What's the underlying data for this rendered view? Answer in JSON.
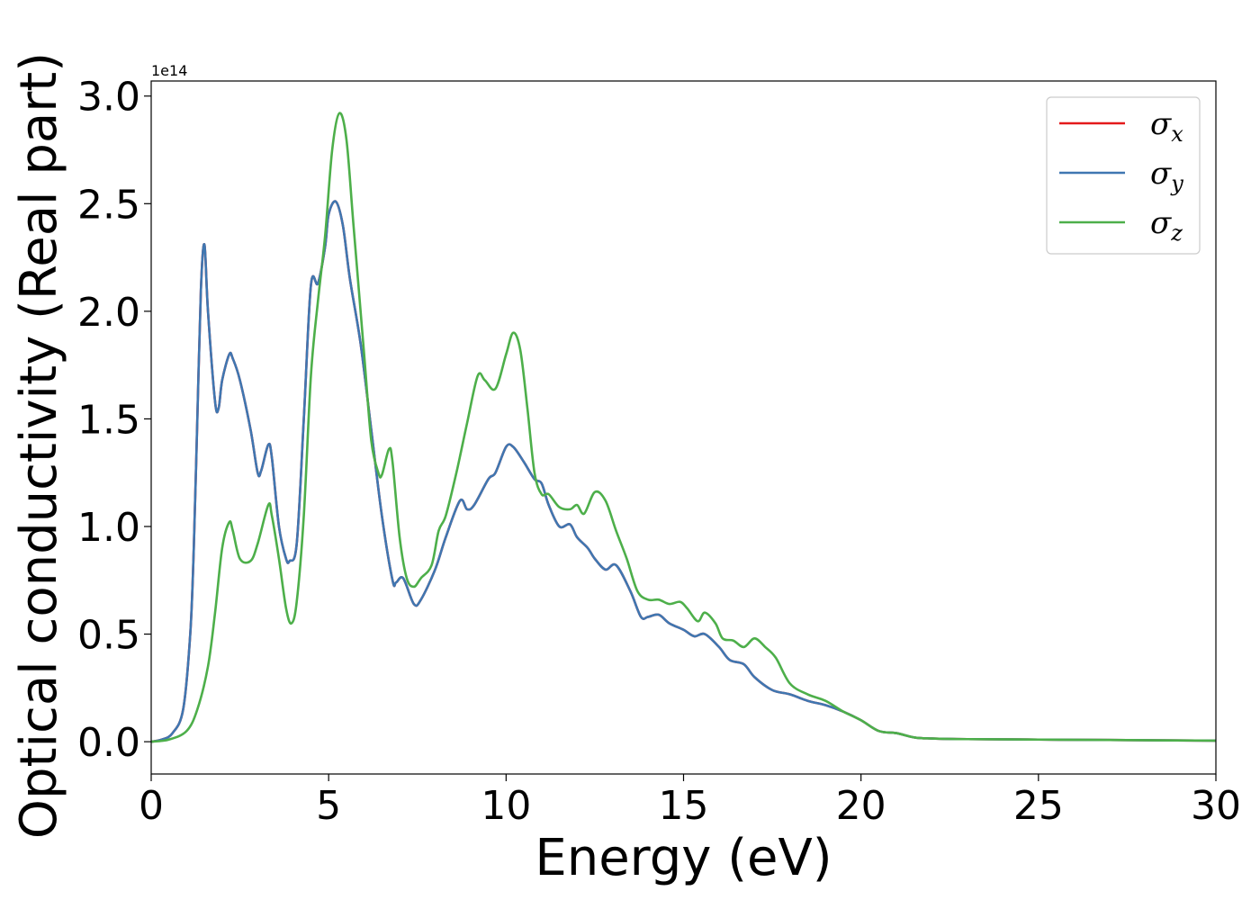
{
  "chart_data": {
    "type": "line",
    "title": "",
    "xlabel": "Energy (eV)",
    "ylabel": "Optical conductivity (Real part)",
    "y_offset_text": "1e14",
    "xlim": [
      0,
      30
    ],
    "ylim": [
      -0.15,
      3.07
    ],
    "xticks": [
      0,
      5,
      10,
      15,
      20,
      25,
      30
    ],
    "xtick_labels": [
      "0",
      "5",
      "10",
      "15",
      "20",
      "25",
      "30"
    ],
    "yticks": [
      0.0,
      0.5,
      1.0,
      1.5,
      2.0,
      2.5,
      3.0
    ],
    "ytick_labels": [
      "0.0",
      "0.5",
      "1.0",
      "1.5",
      "2.0",
      "2.5",
      "3.0"
    ],
    "grid": false,
    "legend_position": "top-right",
    "series": [
      {
        "name": "σx",
        "legend_symbol": "σ",
        "legend_sub": "x",
        "color": "#e41a1c",
        "x": [
          0,
          0.3,
          0.6,
          0.9,
          1.1,
          1.2,
          1.3,
          1.4,
          1.5,
          1.6,
          1.8,
          1.9,
          2.0,
          2.2,
          2.3,
          2.5,
          2.8,
          3.0,
          3.1,
          3.3,
          3.4,
          3.6,
          3.8,
          3.9,
          4.1,
          4.3,
          4.5,
          4.7,
          4.9,
          5.0,
          5.2,
          5.4,
          5.6,
          5.9,
          6.2,
          6.5,
          6.8,
          6.9,
          7.1,
          7.4,
          7.6,
          8.0,
          8.3,
          8.7,
          8.9,
          9.1,
          9.5,
          9.7,
          10.0,
          10.2,
          10.5,
          10.8,
          11.0,
          11.2,
          11.5,
          11.8,
          12.0,
          12.3,
          12.5,
          12.8,
          13.1,
          13.5,
          13.8,
          14.0,
          14.3,
          14.6,
          15.0,
          15.3,
          15.6,
          16.0,
          16.3,
          16.7,
          17.0,
          17.5,
          18.0,
          18.5,
          19.0,
          19.5,
          20.0,
          20.5,
          21.0,
          21.5,
          22.0,
          23.0,
          25.0,
          27.0,
          30.0
        ],
        "values": [
          0.0,
          0.01,
          0.04,
          0.15,
          0.5,
          0.9,
          1.5,
          2.1,
          2.31,
          2.0,
          1.58,
          1.55,
          1.68,
          1.8,
          1.78,
          1.68,
          1.45,
          1.25,
          1.26,
          1.38,
          1.32,
          1.0,
          0.85,
          0.84,
          0.92,
          1.5,
          2.12,
          2.13,
          2.3,
          2.45,
          2.51,
          2.4,
          2.15,
          1.85,
          1.45,
          1.05,
          0.75,
          0.74,
          0.76,
          0.64,
          0.66,
          0.8,
          0.95,
          1.12,
          1.08,
          1.1,
          1.22,
          1.25,
          1.37,
          1.37,
          1.3,
          1.22,
          1.2,
          1.1,
          1.0,
          1.01,
          0.95,
          0.9,
          0.85,
          0.8,
          0.82,
          0.7,
          0.58,
          0.58,
          0.59,
          0.55,
          0.52,
          0.49,
          0.5,
          0.44,
          0.38,
          0.36,
          0.3,
          0.24,
          0.22,
          0.19,
          0.17,
          0.14,
          0.1,
          0.05,
          0.04,
          0.02,
          0.015,
          0.012,
          0.01,
          0.008,
          0.005
        ]
      },
      {
        "name": "σy",
        "legend_symbol": "σ",
        "legend_sub": "y",
        "color": "#3f77b1",
        "x": [
          0,
          0.3,
          0.6,
          0.9,
          1.1,
          1.2,
          1.3,
          1.4,
          1.5,
          1.6,
          1.8,
          1.9,
          2.0,
          2.2,
          2.3,
          2.5,
          2.8,
          3.0,
          3.1,
          3.3,
          3.4,
          3.6,
          3.8,
          3.9,
          4.1,
          4.3,
          4.5,
          4.7,
          4.9,
          5.0,
          5.2,
          5.4,
          5.6,
          5.9,
          6.2,
          6.5,
          6.8,
          6.9,
          7.1,
          7.4,
          7.6,
          8.0,
          8.3,
          8.7,
          8.9,
          9.1,
          9.5,
          9.7,
          10.0,
          10.2,
          10.5,
          10.8,
          11.0,
          11.2,
          11.5,
          11.8,
          12.0,
          12.3,
          12.5,
          12.8,
          13.1,
          13.5,
          13.8,
          14.0,
          14.3,
          14.6,
          15.0,
          15.3,
          15.6,
          16.0,
          16.3,
          16.7,
          17.0,
          17.5,
          18.0,
          18.5,
          19.0,
          19.5,
          20.0,
          20.5,
          21.0,
          21.5,
          22.0,
          23.0,
          25.0,
          27.0,
          30.0
        ],
        "values": [
          0.0,
          0.01,
          0.04,
          0.15,
          0.5,
          0.9,
          1.5,
          2.1,
          2.31,
          2.0,
          1.58,
          1.55,
          1.68,
          1.8,
          1.78,
          1.68,
          1.45,
          1.25,
          1.26,
          1.38,
          1.32,
          1.0,
          0.85,
          0.84,
          0.92,
          1.5,
          2.12,
          2.13,
          2.3,
          2.45,
          2.51,
          2.4,
          2.15,
          1.85,
          1.45,
          1.05,
          0.75,
          0.74,
          0.76,
          0.64,
          0.66,
          0.8,
          0.95,
          1.12,
          1.08,
          1.1,
          1.22,
          1.25,
          1.37,
          1.37,
          1.3,
          1.22,
          1.2,
          1.1,
          1.0,
          1.01,
          0.95,
          0.9,
          0.85,
          0.8,
          0.82,
          0.7,
          0.58,
          0.58,
          0.59,
          0.55,
          0.52,
          0.49,
          0.5,
          0.44,
          0.38,
          0.36,
          0.3,
          0.24,
          0.22,
          0.19,
          0.17,
          0.14,
          0.1,
          0.05,
          0.04,
          0.02,
          0.015,
          0.012,
          0.01,
          0.008,
          0.005
        ]
      },
      {
        "name": "σz",
        "legend_symbol": "σ",
        "legend_sub": "z",
        "color": "#4daf4a",
        "x": [
          0,
          0.5,
          1.0,
          1.3,
          1.6,
          1.8,
          2.0,
          2.2,
          2.3,
          2.5,
          2.8,
          3.0,
          3.3,
          3.4,
          3.6,
          3.8,
          3.95,
          4.1,
          4.3,
          4.5,
          4.7,
          4.9,
          5.1,
          5.3,
          5.5,
          5.7,
          6.0,
          6.2,
          6.4,
          6.5,
          6.7,
          6.8,
          7.0,
          7.2,
          7.4,
          7.6,
          7.9,
          8.1,
          8.3,
          8.6,
          8.9,
          9.2,
          9.4,
          9.7,
          10.0,
          10.2,
          10.4,
          10.6,
          10.8,
          11.0,
          11.2,
          11.5,
          11.8,
          12.0,
          12.2,
          12.5,
          12.8,
          13.1,
          13.4,
          13.7,
          14.0,
          14.3,
          14.6,
          14.9,
          15.1,
          15.4,
          15.6,
          15.9,
          16.1,
          16.4,
          16.7,
          17.0,
          17.3,
          17.6,
          18.0,
          18.5,
          19.0,
          19.5,
          20.0,
          20.5,
          21.0,
          21.5,
          22.0,
          23.0,
          25.0,
          27.0,
          30.0
        ],
        "values": [
          0.0,
          0.01,
          0.05,
          0.15,
          0.35,
          0.6,
          0.9,
          1.02,
          0.98,
          0.85,
          0.84,
          0.92,
          1.1,
          1.05,
          0.85,
          0.62,
          0.55,
          0.65,
          1.05,
          1.7,
          2.05,
          2.35,
          2.75,
          2.92,
          2.8,
          2.4,
          1.8,
          1.4,
          1.25,
          1.24,
          1.36,
          1.3,
          0.95,
          0.76,
          0.72,
          0.76,
          0.82,
          0.98,
          1.05,
          1.25,
          1.48,
          1.7,
          1.68,
          1.64,
          1.8,
          1.9,
          1.82,
          1.55,
          1.25,
          1.15,
          1.15,
          1.09,
          1.08,
          1.1,
          1.06,
          1.16,
          1.12,
          0.98,
          0.85,
          0.7,
          0.66,
          0.66,
          0.64,
          0.65,
          0.62,
          0.56,
          0.6,
          0.55,
          0.48,
          0.47,
          0.44,
          0.48,
          0.44,
          0.39,
          0.27,
          0.22,
          0.19,
          0.14,
          0.1,
          0.05,
          0.04,
          0.02,
          0.015,
          0.012,
          0.01,
          0.008,
          0.005
        ]
      }
    ]
  }
}
